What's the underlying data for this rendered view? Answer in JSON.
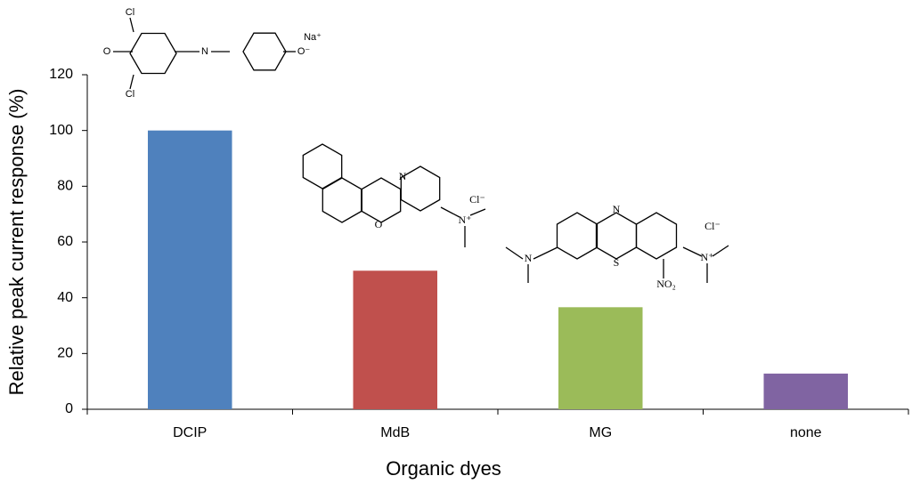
{
  "chart_data": {
    "type": "bar",
    "y_label": "Relative peak current response (%)",
    "x_label": "Organic dyes",
    "categories": [
      "DCIP",
      "MdB",
      "MG",
      "none"
    ],
    "values": [
      100,
      49.7,
      36.6,
      12.8
    ],
    "colors": [
      "#4f81bd",
      "#c0504d",
      "#9bbb59",
      "#8064a2"
    ],
    "ylim": [
      0,
      120
    ],
    "yticks": [
      0,
      20,
      40,
      60,
      80,
      100,
      120
    ],
    "grid": false,
    "annotations": [
      "Cl",
      "O",
      "Cl",
      "N",
      "O⁻",
      "Na⁺",
      "N",
      "O",
      "N⁺",
      "Cl⁻",
      "N",
      "N",
      "S",
      "NO₂",
      "N⁺",
      "Cl⁻"
    ]
  }
}
